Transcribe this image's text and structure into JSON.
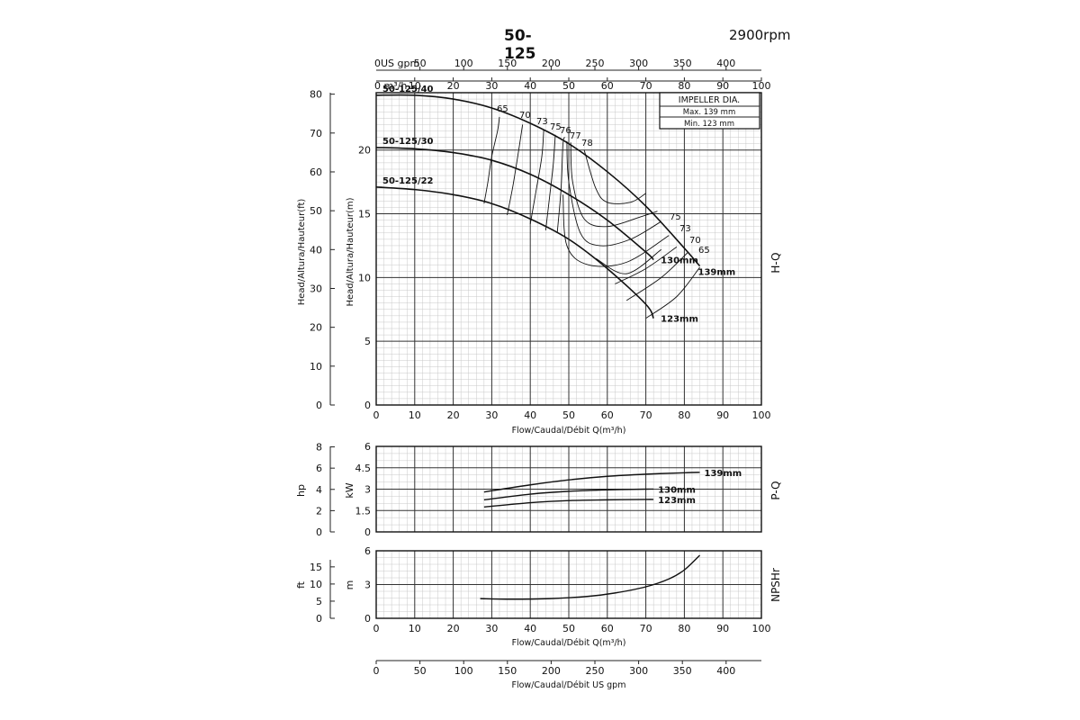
{
  "header": {
    "title": "50-125",
    "speed": "2900rpm"
  },
  "chart_data": [
    {
      "id": "hq",
      "type": "line",
      "side_label": "H-Q",
      "xlabel": "Flow/Caudal/Débit Q(m³/h)",
      "ylabel_ft": "Head/Altura/Hauteur(ft)",
      "ylabel_m": "Head/Altura/Hauteur(m)",
      "xlim": [
        0,
        100
      ],
      "ylim_m": [
        0,
        24.5
      ],
      "x_ticks": [
        "0",
        "10",
        "20",
        "30",
        "40",
        "50",
        "60",
        "70",
        "80",
        "90",
        "100"
      ],
      "y_ticks_m": [
        "0",
        "5",
        "10",
        "15",
        "20"
      ],
      "y_ticks_ft": [
        "0",
        "10",
        "20",
        "30",
        "40",
        "50",
        "60",
        "70",
        "80"
      ],
      "top_axis_m3h": {
        "label": "0 m³/h",
        "ticks": [
          "10",
          "20",
          "30",
          "40",
          "50",
          "60",
          "70",
          "80",
          "90",
          "100"
        ]
      },
      "top_axis_gpm": {
        "label": "0US gpm",
        "ticks": [
          "50",
          "100",
          "150",
          "200",
          "250",
          "300",
          "350",
          "400"
        ]
      },
      "impeller_box": {
        "title": "IMPELLER DIA.",
        "max": "Max.  139  mm",
        "min": "Min.  123  mm"
      },
      "series": [
        {
          "name": "50-125/40",
          "end_label": "139mm",
          "x": [
            0,
            10,
            20,
            30,
            40,
            50,
            60,
            70,
            80,
            84
          ],
          "y": [
            24.3,
            24.3,
            24.0,
            23.3,
            22.1,
            20.5,
            18.3,
            15.6,
            12.3,
            10.9
          ]
        },
        {
          "name": "50-125/30",
          "end_label": "130mm",
          "x": [
            0,
            10,
            20,
            30,
            40,
            50,
            60,
            70,
            72
          ],
          "y": [
            20.2,
            20.1,
            19.8,
            19.2,
            18.1,
            16.5,
            14.5,
            12.0,
            11.4
          ]
        },
        {
          "name": "50-125/22",
          "end_label": "123mm",
          "x": [
            0,
            10,
            20,
            30,
            40,
            50,
            60,
            70,
            72
          ],
          "y": [
            17.1,
            16.9,
            16.5,
            15.8,
            14.6,
            13.0,
            10.7,
            7.9,
            6.8
          ]
        }
      ],
      "efficiency_labels": [
        "65",
        "70",
        "73",
        "75",
        "76",
        "77",
        "78",
        "75",
        "73",
        "70",
        "65"
      ]
    },
    {
      "id": "pq",
      "type": "line",
      "side_label": "P-Q",
      "ylabel_kw": "kW",
      "ylabel_hp": "hp",
      "xlim": [
        0,
        100
      ],
      "ylim_kw": [
        0,
        6
      ],
      "y_ticks_kw": [
        "0",
        "1.5",
        "3",
        "4.5",
        "6"
      ],
      "y_ticks_hp": [
        "0",
        "2",
        "4",
        "6",
        "8"
      ],
      "series": [
        {
          "name": "139mm",
          "x": [
            28,
            40,
            50,
            60,
            70,
            80,
            84
          ],
          "y": [
            2.8,
            3.3,
            3.65,
            3.9,
            4.05,
            4.15,
            4.18
          ]
        },
        {
          "name": "130mm",
          "x": [
            28,
            40,
            50,
            60,
            70,
            72
          ],
          "y": [
            2.25,
            2.65,
            2.85,
            2.95,
            3.0,
            3.0
          ]
        },
        {
          "name": "123mm",
          "x": [
            28,
            40,
            50,
            60,
            70,
            72
          ],
          "y": [
            1.75,
            2.05,
            2.2,
            2.25,
            2.28,
            2.28
          ]
        }
      ]
    },
    {
      "id": "npsh",
      "type": "line",
      "side_label": "NPSHr",
      "ylabel_m": "m",
      "ylabel_ft": "ft",
      "xlabel": "Flow/Caudal/Débit Q(m³/h)",
      "xlim": [
        0,
        100
      ],
      "ylim_m": [
        0,
        6
      ],
      "y_ticks_m": [
        "0",
        "3",
        "6"
      ],
      "y_ticks_ft": [
        "0",
        "5",
        "10",
        "15"
      ],
      "x_ticks": [
        "0",
        "10",
        "20",
        "30",
        "40",
        "50",
        "60",
        "70",
        "80",
        "90",
        "100"
      ],
      "series": [
        {
          "name": "NPSHr",
          "x": [
            27,
            35,
            45,
            55,
            62,
            70,
            76,
            80,
            84
          ],
          "y": [
            1.75,
            1.7,
            1.75,
            1.95,
            2.25,
            2.8,
            3.5,
            4.3,
            5.6
          ]
        }
      ]
    },
    {
      "id": "gpm_axis",
      "type": "axis",
      "xlabel": "Flow/Caudal/Débit  US gpm",
      "ticks": [
        "0",
        "50",
        "100",
        "150",
        "200",
        "250",
        "300",
        "350",
        "400"
      ]
    }
  ]
}
